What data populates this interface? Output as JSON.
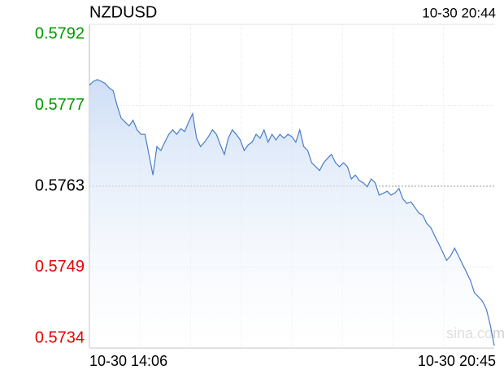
{
  "chart_data": {
    "type": "line",
    "title": "NZDUSD",
    "timestamp": "10-30 20:44",
    "watermark": "sina.com",
    "x_labels": [
      "10-30 14:06",
      "10-30 20:45"
    ],
    "ylim": [
      0.5734,
      0.5792
    ],
    "yticks": [
      0.5734,
      {
        "value": 0.57485,
        "label": "0.5749"
      },
      0.5763,
      {
        "value": 0.57775,
        "label": "0.5777"
      },
      0.5792
    ],
    "up_color": "#009900",
    "down_color": "#e60000",
    "mid_color": "#000000",
    "color": "#4a7cc7",
    "values": [
      0.57811,
      0.57818,
      0.57821,
      0.57818,
      0.57814,
      0.57806,
      0.57801,
      0.57774,
      0.57752,
      0.57745,
      0.57738,
      0.57748,
      0.57731,
      0.57723,
      0.57723,
      0.57687,
      0.5765,
      0.57701,
      0.57694,
      0.57709,
      0.57723,
      0.57731,
      0.57723,
      0.57733,
      0.57728,
      0.57745,
      0.5776,
      0.57716,
      0.57701,
      0.57709,
      0.57719,
      0.57731,
      0.57723,
      0.57704,
      0.57687,
      0.57716,
      0.57731,
      0.57723,
      0.57713,
      0.57694,
      0.57704,
      0.57709,
      0.57723,
      0.57716,
      0.57731,
      0.57709,
      0.57723,
      0.57713,
      0.57723,
      0.57716,
      0.57723,
      0.57719,
      0.57709,
      0.57731,
      0.57701,
      0.57694,
      0.57672,
      0.57665,
      0.57658,
      0.57672,
      0.5768,
      0.57687,
      0.57672,
      0.57665,
      0.57672,
      0.57665,
      0.57643,
      0.5765,
      0.5764,
      0.57636,
      0.57629,
      0.57643,
      0.57636,
      0.57614,
      0.57617,
      0.57621,
      0.57614,
      0.57618,
      0.57626,
      0.57607,
      0.57599,
      0.57602,
      0.57592,
      0.57582,
      0.57578,
      0.57563,
      0.57556,
      0.57541,
      0.57527,
      0.57512,
      0.57497,
      0.57505,
      0.57519,
      0.57505,
      0.5749,
      0.57476,
      0.57461,
      0.57439,
      0.57432,
      0.57424,
      0.5741,
      0.57381,
      0.57344
    ]
  }
}
